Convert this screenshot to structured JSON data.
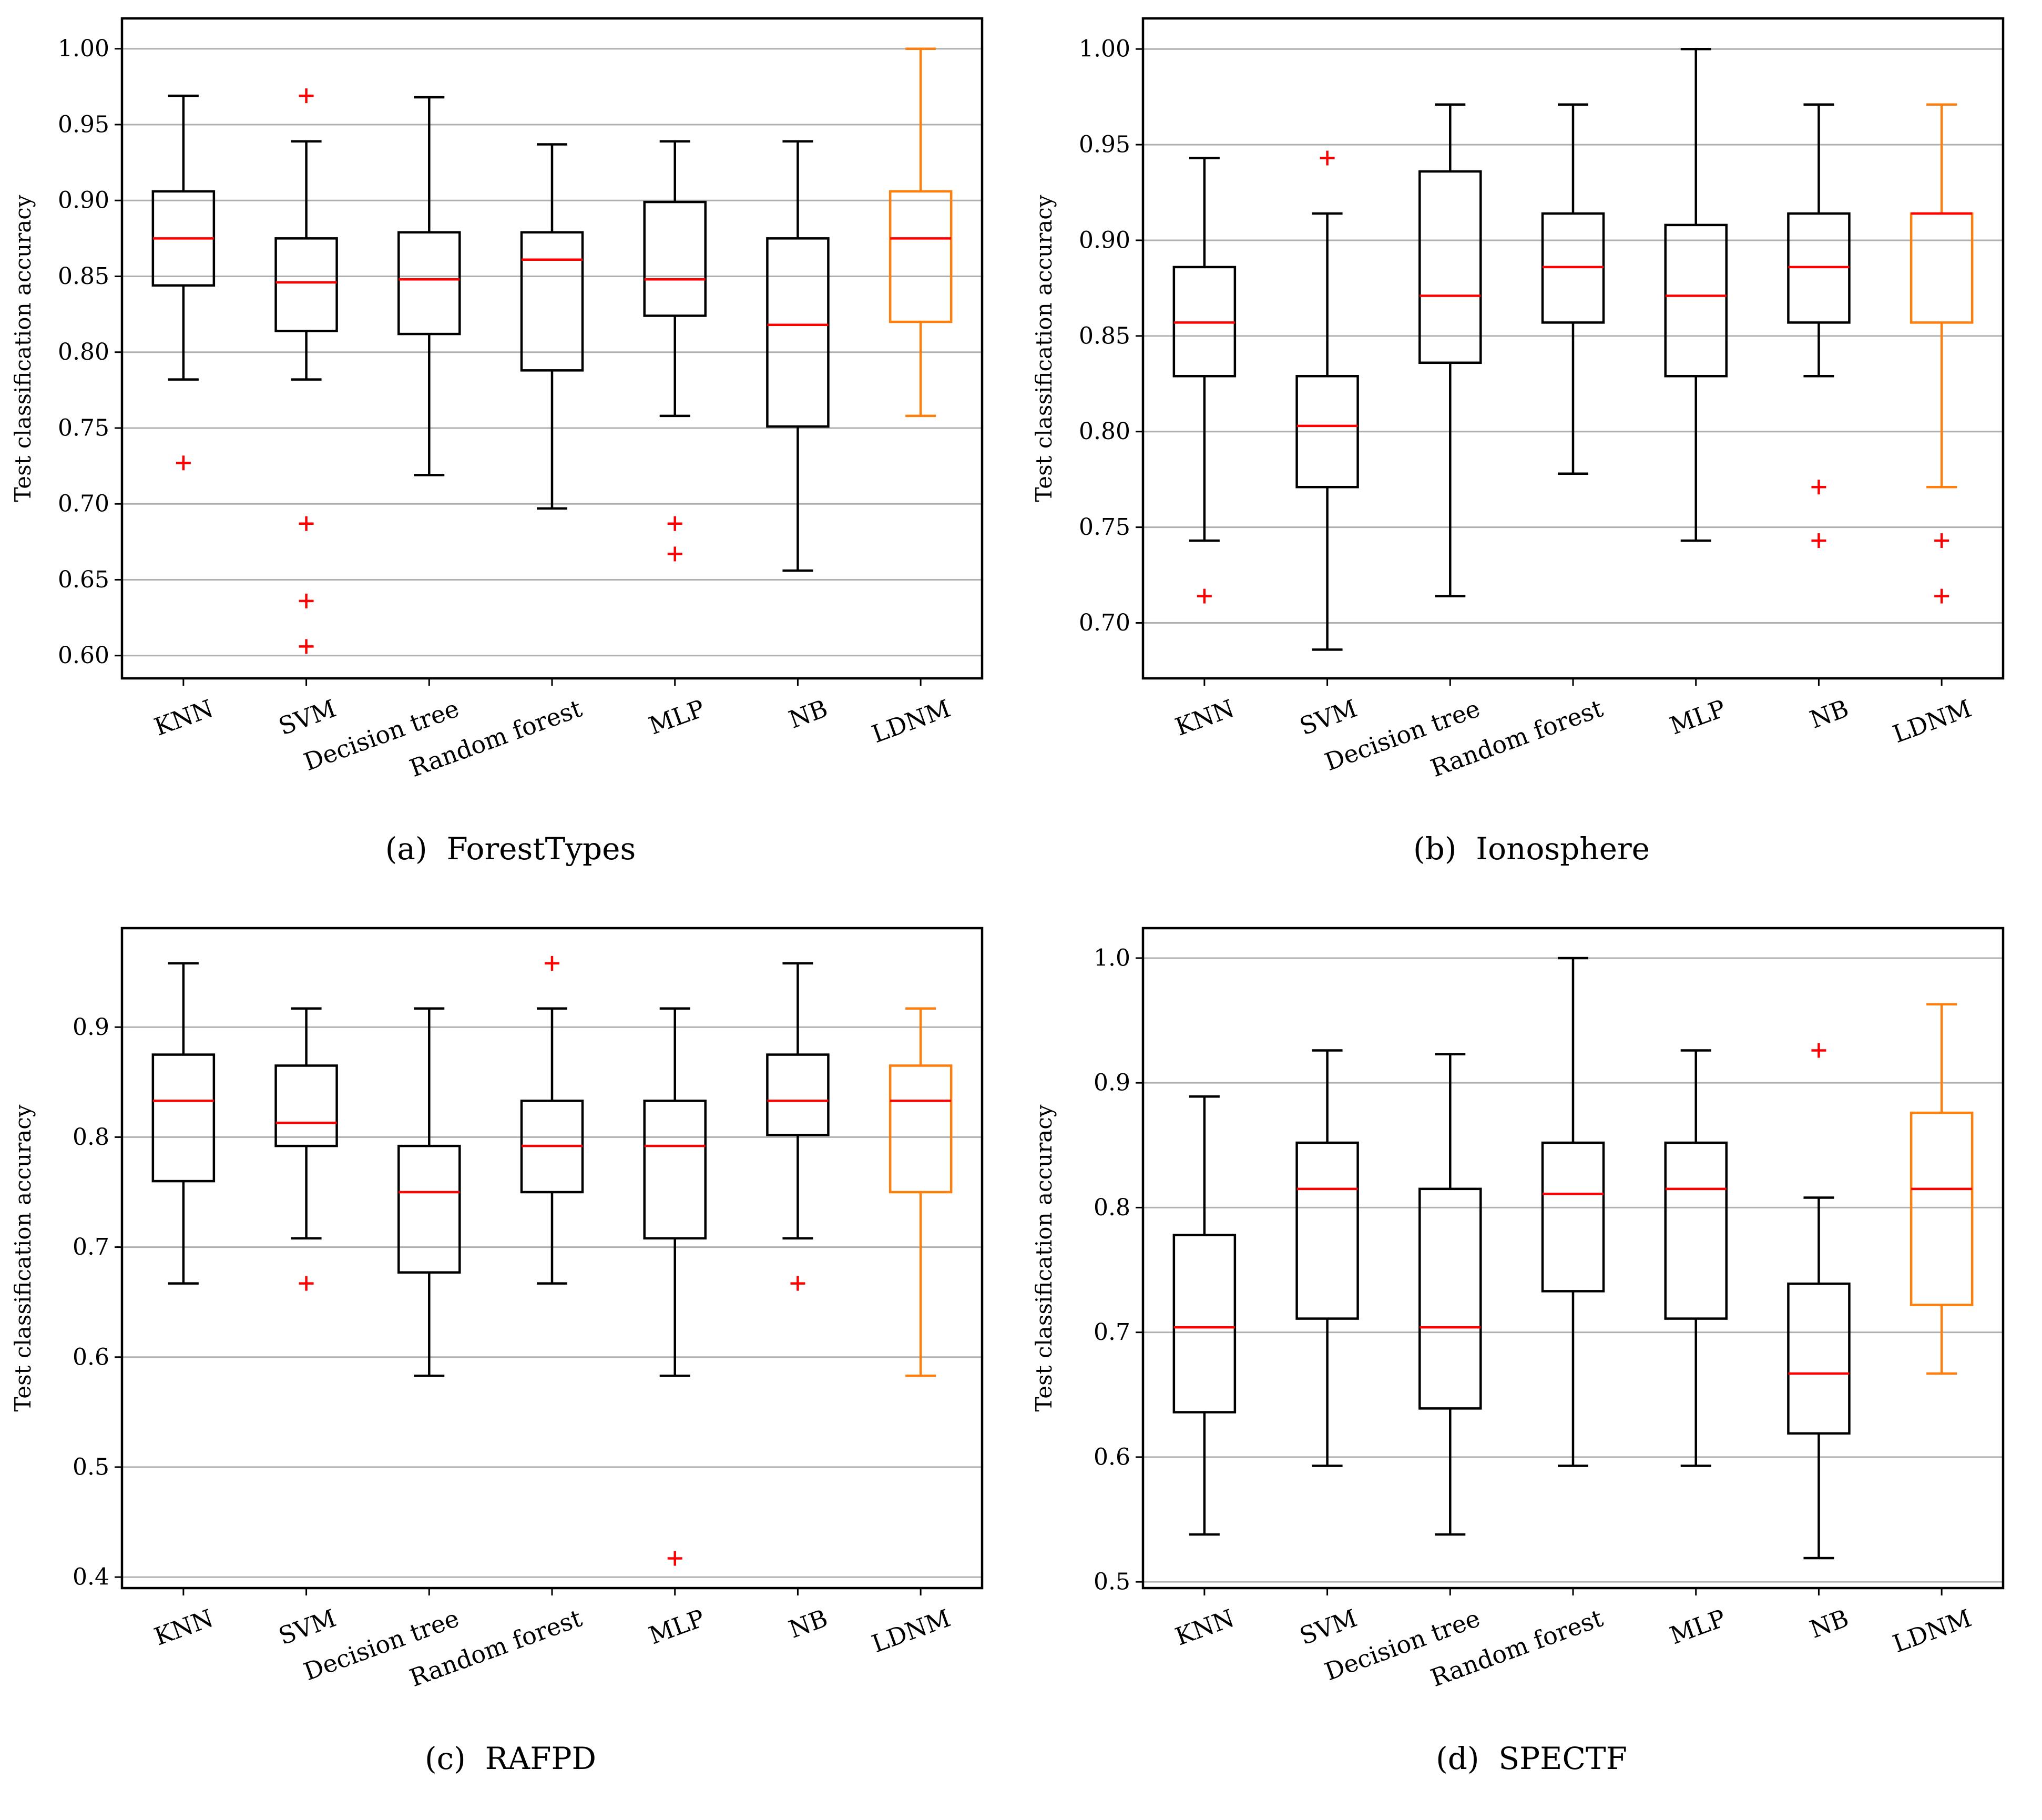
{
  "chart_data": [
    {
      "type": "box",
      "caption_tag": "(a)",
      "caption_name": "ForestTypes",
      "ylabel": "Test classification  accuracy",
      "ylim": [
        0.585,
        1.02
      ],
      "yticks": [
        0.6,
        0.65,
        0.7,
        0.75,
        0.8,
        0.85,
        0.9,
        0.95,
        1.0
      ],
      "ytick_labels": [
        "0.60",
        "0.65",
        "0.70",
        "0.75",
        "0.80",
        "0.85",
        "0.90",
        "0.95",
        "1.00"
      ],
      "categories": [
        "KNN",
        "SVM",
        "Decision tree",
        "Random forest",
        "MLP",
        "NB",
        "LDNM"
      ],
      "boxes": [
        {
          "whisker_low": 0.782,
          "q1": 0.844,
          "median": 0.875,
          "q3": 0.906,
          "whisker_high": 0.969,
          "outliers": [
            0.727
          ],
          "color": "#000000"
        },
        {
          "whisker_low": 0.782,
          "q1": 0.814,
          "median": 0.846,
          "q3": 0.875,
          "whisker_high": 0.939,
          "outliers": [
            0.969,
            0.687,
            0.636,
            0.606
          ],
          "color": "#000000"
        },
        {
          "whisker_low": 0.719,
          "q1": 0.812,
          "median": 0.848,
          "q3": 0.879,
          "whisker_high": 0.968,
          "outliers": [],
          "color": "#000000"
        },
        {
          "whisker_low": 0.697,
          "q1": 0.788,
          "median": 0.861,
          "q3": 0.879,
          "whisker_high": 0.937,
          "outliers": [],
          "color": "#000000"
        },
        {
          "whisker_low": 0.758,
          "q1": 0.824,
          "median": 0.848,
          "q3": 0.899,
          "whisker_high": 0.939,
          "outliers": [
            0.687,
            0.667
          ],
          "color": "#000000"
        },
        {
          "whisker_low": 0.656,
          "q1": 0.751,
          "median": 0.818,
          "q3": 0.875,
          "whisker_high": 0.939,
          "outliers": [],
          "color": "#000000"
        },
        {
          "whisker_low": 0.758,
          "q1": 0.82,
          "median": 0.875,
          "q3": 0.906,
          "whisker_high": 1.0,
          "outliers": [],
          "color": "#ff7f0e"
        }
      ]
    },
    {
      "type": "box",
      "caption_tag": "(b)",
      "caption_name": "Ionosphere",
      "ylabel": "Test classification  accuracy",
      "ylim": [
        0.671,
        1.016
      ],
      "yticks": [
        0.7,
        0.75,
        0.8,
        0.85,
        0.9,
        0.95,
        1.0
      ],
      "ytick_labels": [
        "0.70",
        "0.75",
        "0.80",
        "0.85",
        "0.90",
        "0.95",
        "1.00"
      ],
      "categories": [
        "KNN",
        "SVM",
        "Decision tree",
        "Random forest",
        "MLP",
        "NB",
        "LDNM"
      ],
      "boxes": [
        {
          "whisker_low": 0.743,
          "q1": 0.829,
          "median": 0.857,
          "q3": 0.886,
          "whisker_high": 0.943,
          "outliers": [
            0.714
          ],
          "color": "#000000"
        },
        {
          "whisker_low": 0.686,
          "q1": 0.771,
          "median": 0.803,
          "q3": 0.829,
          "whisker_high": 0.914,
          "outliers": [
            0.943
          ],
          "color": "#000000"
        },
        {
          "whisker_low": 0.714,
          "q1": 0.836,
          "median": 0.871,
          "q3": 0.936,
          "whisker_high": 0.971,
          "outliers": [],
          "color": "#000000"
        },
        {
          "whisker_low": 0.778,
          "q1": 0.857,
          "median": 0.886,
          "q3": 0.914,
          "whisker_high": 0.971,
          "outliers": [],
          "color": "#000000"
        },
        {
          "whisker_low": 0.743,
          "q1": 0.829,
          "median": 0.871,
          "q3": 0.908,
          "whisker_high": 1.0,
          "outliers": [],
          "color": "#000000"
        },
        {
          "whisker_low": 0.829,
          "q1": 0.857,
          "median": 0.886,
          "q3": 0.914,
          "whisker_high": 0.971,
          "outliers": [
            0.771,
            0.743
          ],
          "color": "#000000"
        },
        {
          "whisker_low": 0.771,
          "q1": 0.857,
          "median": 0.914,
          "q3": 0.914,
          "whisker_high": 0.971,
          "outliers": [
            0.743,
            0.714
          ],
          "color": "#ff7f0e"
        }
      ]
    },
    {
      "type": "box",
      "caption_tag": "(c)",
      "caption_name": "RAFPD",
      "ylabel": "Test classification  accuracy",
      "ylim": [
        0.39,
        0.99
      ],
      "yticks": [
        0.4,
        0.5,
        0.6,
        0.7,
        0.8,
        0.9
      ],
      "ytick_labels": [
        "0.4",
        "0.5",
        "0.6",
        "0.7",
        "0.8",
        "0.9"
      ],
      "categories": [
        "KNN",
        "SVM",
        "Decision tree",
        "Random forest",
        "MLP",
        "NB",
        "LDNM"
      ],
      "boxes": [
        {
          "whisker_low": 0.667,
          "q1": 0.76,
          "median": 0.833,
          "q3": 0.875,
          "whisker_high": 0.958,
          "outliers": [],
          "color": "#000000"
        },
        {
          "whisker_low": 0.708,
          "q1": 0.792,
          "median": 0.813,
          "q3": 0.865,
          "whisker_high": 0.917,
          "outliers": [
            0.667
          ],
          "color": "#000000"
        },
        {
          "whisker_low": 0.583,
          "q1": 0.677,
          "median": 0.75,
          "q3": 0.792,
          "whisker_high": 0.917,
          "outliers": [],
          "color": "#000000"
        },
        {
          "whisker_low": 0.667,
          "q1": 0.75,
          "median": 0.792,
          "q3": 0.833,
          "whisker_high": 0.917,
          "outliers": [
            0.958
          ],
          "color": "#000000"
        },
        {
          "whisker_low": 0.583,
          "q1": 0.708,
          "median": 0.792,
          "q3": 0.833,
          "whisker_high": 0.917,
          "outliers": [
            0.417
          ],
          "color": "#000000"
        },
        {
          "whisker_low": 0.708,
          "q1": 0.802,
          "median": 0.833,
          "q3": 0.875,
          "whisker_high": 0.958,
          "outliers": [
            0.667
          ],
          "color": "#000000"
        },
        {
          "whisker_low": 0.583,
          "q1": 0.75,
          "median": 0.833,
          "q3": 0.865,
          "whisker_high": 0.917,
          "outliers": [],
          "color": "#ff7f0e"
        }
      ]
    },
    {
      "type": "box",
      "caption_tag": "(d)",
      "caption_name": "SPECTF",
      "ylabel": "Test classification  accuracy",
      "ylim": [
        0.495,
        1.024
      ],
      "yticks": [
        0.5,
        0.6,
        0.7,
        0.8,
        0.9,
        1.0
      ],
      "ytick_labels": [
        "0.5",
        "0.6",
        "0.7",
        "0.8",
        "0.9",
        "1.0"
      ],
      "categories": [
        "KNN",
        "SVM",
        "Decision tree",
        "Random forest",
        "MLP",
        "NB",
        "LDNM"
      ],
      "boxes": [
        {
          "whisker_low": 0.538,
          "q1": 0.636,
          "median": 0.704,
          "q3": 0.778,
          "whisker_high": 0.889,
          "outliers": [],
          "color": "#000000"
        },
        {
          "whisker_low": 0.593,
          "q1": 0.711,
          "median": 0.815,
          "q3": 0.852,
          "whisker_high": 0.926,
          "outliers": [],
          "color": "#000000"
        },
        {
          "whisker_low": 0.538,
          "q1": 0.639,
          "median": 0.704,
          "q3": 0.815,
          "whisker_high": 0.923,
          "outliers": [],
          "color": "#000000"
        },
        {
          "whisker_low": 0.593,
          "q1": 0.733,
          "median": 0.811,
          "q3": 0.852,
          "whisker_high": 1.0,
          "outliers": [],
          "color": "#000000"
        },
        {
          "whisker_low": 0.593,
          "q1": 0.711,
          "median": 0.815,
          "q3": 0.852,
          "whisker_high": 0.926,
          "outliers": [],
          "color": "#000000"
        },
        {
          "whisker_low": 0.519,
          "q1": 0.619,
          "median": 0.667,
          "q3": 0.739,
          "whisker_high": 0.808,
          "outliers": [
            0.926
          ],
          "color": "#000000"
        },
        {
          "whisker_low": 0.667,
          "q1": 0.722,
          "median": 0.815,
          "q3": 0.876,
          "whisker_high": 0.963,
          "outliers": [],
          "color": "#ff7f0e"
        }
      ]
    }
  ],
  "colors": {
    "median": "#ff0000",
    "outlier": "#ff0000",
    "grid": "#b0b0b0",
    "frame": "#000000",
    "highlight": "#ff7f0e"
  }
}
